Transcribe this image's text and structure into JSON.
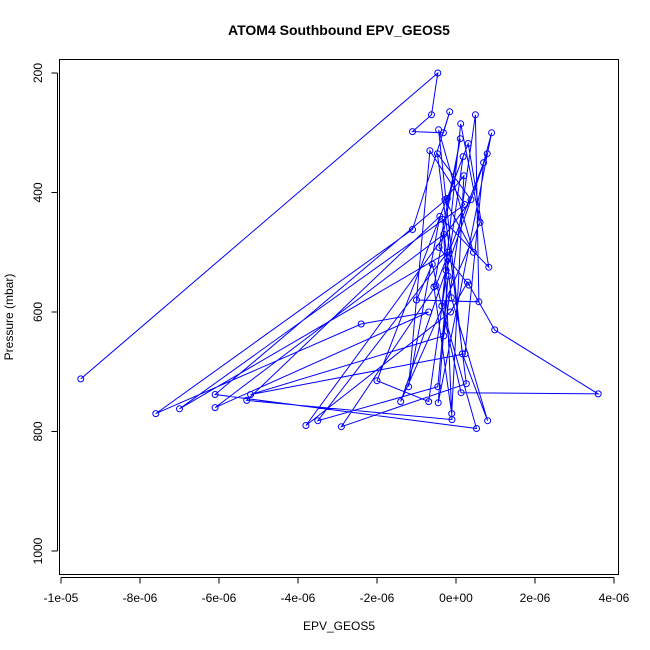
{
  "chart_data": {
    "type": "line",
    "title": "ATOM4 Southbound EPV_GEOS5",
    "xlabel": "EPV_GEOS5",
    "ylabel": "Pressure (mbar)",
    "xlim": [
      -1e-05,
      4e-06
    ],
    "ylim": [
      1040,
      180
    ],
    "y_reversed": true,
    "grid": false,
    "x_ticks": [
      -1e-05,
      -8e-06,
      -6e-06,
      -4e-06,
      -2e-06,
      0,
      2e-06,
      4e-06
    ],
    "x_tick_labels": [
      "-1e-05",
      "-8e-06",
      "-6e-06",
      "-4e-06",
      "-2e-06",
      "0e+00",
      "2e-06",
      "4e-06"
    ],
    "y_ticks": [
      200,
      400,
      600,
      800,
      1000
    ],
    "y_tick_labels": [
      "200",
      "400",
      "600",
      "800",
      "1000"
    ],
    "series_color": "#0000ff",
    "marker": "open-circle",
    "series": [
      {
        "points": [
          [
            -9.5e-06,
            712
          ],
          [
            -4.6e-07,
            200
          ],
          [
            -6.2e-07,
            270
          ],
          [
            -1.1e-06,
            298
          ],
          [
            -3.2e-07,
            300
          ],
          [
            -1.6e-07,
            265
          ],
          [
            -1.1e-06,
            462
          ],
          [
            -7.6e-06,
            770
          ],
          [
            -2.4e-06,
            620
          ],
          [
            -6.9e-07,
            600
          ],
          [
            -6.1e-06,
            760
          ],
          [
            -3.1e-07,
            470
          ],
          [
            -1e-07,
            780
          ],
          [
            -5.3e-06,
            748
          ],
          [
            -4.1e-07,
            440
          ],
          [
            -1.2e-06,
            725
          ],
          [
            -6.6e-07,
            330
          ],
          [
            2.2e-07,
            420
          ],
          [
            -7e-06,
            762
          ],
          [
            -2.1e-07,
            500
          ],
          [
            -3.5e-06,
            782
          ],
          [
            -4.6e-07,
            725
          ],
          [
            -2e-07,
            540
          ],
          [
            -4.5e-07,
            752
          ],
          [
            9e-07,
            300
          ],
          [
            7e-07,
            350
          ],
          [
            2.3e-07,
            670
          ],
          [
            -5.2e-06,
            738
          ],
          [
            -3.1e-07,
            640
          ],
          [
            4.9e-07,
            270
          ],
          [
            5.8e-07,
            583
          ],
          [
            -1e-06,
            580
          ],
          [
            -6e-07,
            520
          ],
          [
            1.3e-07,
            735
          ],
          [
            3.6e-06,
            737
          ],
          [
            9.8e-07,
            630
          ],
          [
            2.9e-07,
            550
          ],
          [
            -1.4e-07,
            600
          ],
          [
            -3.8e-06,
            790
          ],
          [
            3.8e-07,
            412
          ],
          [
            -4.7e-07,
            335
          ],
          [
            2.6e-07,
            720
          ],
          [
            -2.9e-06,
            792
          ],
          [
            -5.1e-07,
            556
          ],
          [
            7.9e-07,
            335
          ],
          [
            -2.5e-07,
            530
          ],
          [
            -1.4e-06,
            750
          ],
          [
            6.1e-07,
            450
          ],
          [
            1.2e-07,
            285
          ],
          [
            -3.6e-07,
            590
          ],
          [
            5.2e-07,
            795
          ],
          [
            -6.1e-06,
            738
          ],
          [
            -2.2e-07,
            410
          ],
          [
            1.8e-07,
            340
          ],
          [
            -6.9e-07,
            750
          ],
          [
            -2e-06,
            715
          ],
          [
            3.1e-07,
            318
          ],
          [
            8.3e-07,
            525
          ],
          [
            -3.4e-07,
            445
          ],
          [
            -1.2e-07,
            576
          ],
          [
            8e-07,
            782
          ],
          [
            1.6e-07,
            670
          ],
          [
            -4.4e-07,
            295
          ],
          [
            4.4e-07,
            500
          ],
          [
            -2.8e-07,
            412
          ],
          [
            2e-07,
            372
          ],
          [
            -1.1e-07,
            770
          ],
          [
            -5.6e-07,
            558
          ],
          [
            1.1e-07,
            310
          ],
          [
            -4.3e-07,
            492
          ],
          [
            3.3e-07,
            555
          ]
        ]
      }
    ]
  }
}
